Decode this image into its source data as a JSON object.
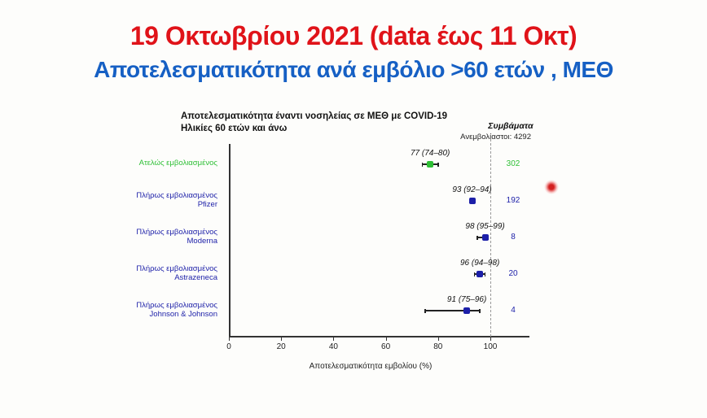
{
  "page": {
    "title": "19 Οκτωβρίου 2021 (data έως 11 Οκτ)",
    "subtitle": "Αποτελεσματικότητα ανά εμβόλιο >60 ετών , ΜΕΘ"
  },
  "colors": {
    "title_red": "#e01319",
    "subtitle_blue": "#1660c4",
    "green": "#2ebf35",
    "blue": "#1c1fa8",
    "axis": "#333333",
    "laser_red": "#d31f1f"
  },
  "chart_data": {
    "type": "scatter",
    "subtype": "forest-plot",
    "title_line1": "Αποτελεσματικότητα έναντι νοσηλείας σε ΜΕΘ με COVID-19",
    "title_line2": "Ηλικίες 60 ετών και άνω",
    "events_header": "Συμβάματα",
    "unvaccinated_note": "Ανεμβολίαστοι: 4292",
    "xlabel": "Αποτελεσματικότητα εμβολίου (%)",
    "x_ticks": [
      0,
      20,
      40,
      60,
      80,
      100
    ],
    "xlim": [
      0,
      105
    ],
    "reference_line_x": 100,
    "grid": false,
    "rows": [
      {
        "label_lines": [
          "Ατελώς εμβολιασμένος"
        ],
        "estimate": 77,
        "ci_low": 74,
        "ci_high": 80,
        "estimate_label": "77 (74–80)",
        "events": "302",
        "color": "green"
      },
      {
        "label_lines": [
          "Πλήρως εμβολιασμένος",
          "Pfizer"
        ],
        "estimate": 93,
        "ci_low": 92,
        "ci_high": 94,
        "estimate_label": "93 (92–94)",
        "events": "192",
        "color": "blue"
      },
      {
        "label_lines": [
          "Πλήρως εμβολιασμένος",
          "Moderna"
        ],
        "estimate": 98,
        "ci_low": 95,
        "ci_high": 99,
        "estimate_label": "98 (95–99)",
        "events": "8",
        "color": "blue"
      },
      {
        "label_lines": [
          "Πλήρως εμβολιασμένος",
          "Astrazeneca"
        ],
        "estimate": 96,
        "ci_low": 94,
        "ci_high": 98,
        "estimate_label": "96 (94–98)",
        "events": "20",
        "color": "blue"
      },
      {
        "label_lines": [
          "Πλήρως εμβολιασμένος",
          "Johnson & Johnson"
        ],
        "estimate": 91,
        "ci_low": 75,
        "ci_high": 96,
        "estimate_label": "91 (75–96)",
        "events": "4",
        "color": "blue"
      }
    ]
  }
}
